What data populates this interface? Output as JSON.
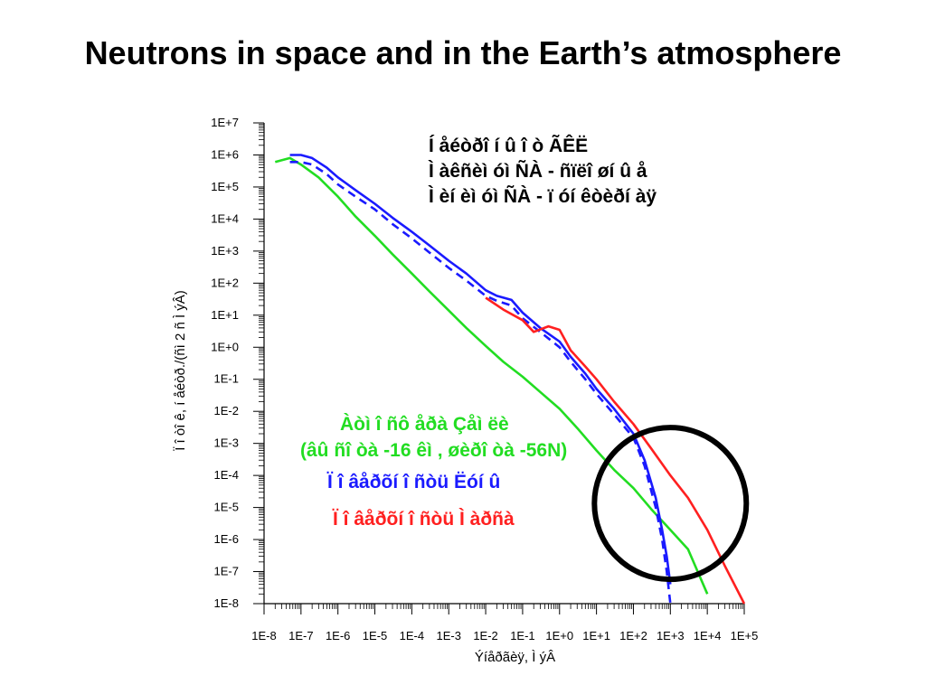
{
  "slide": {
    "title": "Neutrons in space and in the Earth’s atmosphere"
  },
  "chart_data": {
    "type": "line",
    "xlabel": "Ýíåðãèÿ, Ì ýÂ",
    "ylabel": "Ï î òî ê, í åéòð./(ñì 2 ñ Ì ýÂ)",
    "x_scale": "log",
    "y_scale": "log",
    "xlim": [
      1e-08,
      100000.0
    ],
    "ylim": [
      1e-08,
      10000000.0
    ],
    "x_ticks": [
      "1E-8",
      "1E-7",
      "1E-6",
      "1E-5",
      "1E-4",
      "1E-3",
      "1E-2",
      "1E-1",
      "1E+0",
      "1E+1",
      "1E+2",
      "1E+3",
      "1E+4",
      "1E+5"
    ],
    "y_ticks": [
      "1E-8",
      "1E-7",
      "1E-6",
      "1E-5",
      "1E-4",
      "1E-3",
      "1E-2",
      "1E-1",
      "1E+0",
      "1E+1",
      "1E+2",
      "1E+3",
      "1E+4",
      "1E+5",
      "1E+6",
      "1E+7"
    ],
    "grid": false,
    "annotations_top": [
      "Í åéòðî í û  î ò ÃÊË",
      "Ì àêñèì óì  ÑÀ - ñïëî øí û å",
      "Ì èí èì óì ÑÀ - ï óí êòèðí àÿ"
    ],
    "annotations_middle": [
      {
        "text": "Àòì î ñô åðà Çåì ëè",
        "color": "#22dd22"
      },
      {
        "text": "(âû ñî òà -16 êì , øèðî òà -56N)",
        "color": "#22dd22"
      },
      {
        "text": "Ï î âåðõí î ñòü Ëóí û",
        "color": "#1a1aff"
      },
      {
        "text": "Ï î âåðõí î ñòü Ì àðñà",
        "color": "#ff2020"
      }
    ],
    "highlight": {
      "shape": "circle",
      "x_center": 1000,
      "y_center": 0.0001
    },
    "series": [
      {
        "color": "#22dd22",
        "style": "solid",
        "x": [
          2e-08,
          5e-08,
          1e-07,
          3e-07,
          1e-06,
          3e-06,
          1e-05,
          3e-05,
          0.0001,
          0.0003,
          0.001,
          0.003,
          0.01,
          0.03,
          0.1,
          0.3,
          1,
          3,
          10,
          30,
          100,
          300,
          1000,
          3000,
          10000
        ],
        "y": [
          600000.0,
          800000.0,
          500000.0,
          200000.0,
          50000.0,
          12000.0,
          3000,
          800,
          200,
          55,
          14,
          4,
          1.1,
          0.35,
          0.12,
          0.04,
          0.012,
          0.003,
          0.0006,
          0.00015,
          4e-05,
          9e-06,
          2e-06,
          5e-07,
          2e-08
        ]
      },
      {
        "color": "#1a1aff",
        "style": "solid",
        "x": [
          5e-08,
          1e-07,
          2e-07,
          5e-07,
          1e-06,
          3e-06,
          1e-05,
          3e-05,
          0.0001,
          0.0003,
          0.001,
          0.003,
          0.01,
          0.02,
          0.05,
          0.1,
          0.3,
          1,
          2,
          5,
          10,
          30,
          100,
          200,
          400,
          600,
          800,
          1000
        ],
        "y": [
          1000000.0,
          1000000.0,
          800000.0,
          400000.0,
          200000.0,
          80000.0,
          30000.0,
          11000.0,
          4000,
          1500,
          500,
          200,
          60,
          40,
          30,
          12,
          4,
          1.5,
          0.5,
          0.15,
          0.05,
          0.012,
          0.002,
          0.0003,
          2e-05,
          2e-06,
          3e-07,
          4e-08
        ]
      },
      {
        "color": "#1a1aff",
        "style": "dashed",
        "x": [
          5e-08,
          1e-07,
          2e-07,
          5e-07,
          1e-06,
          3e-06,
          1e-05,
          3e-05,
          0.0001,
          0.0003,
          0.001,
          0.003,
          0.01,
          0.02,
          0.05,
          0.1,
          0.3,
          1,
          2,
          5,
          10,
          30,
          100,
          200,
          400,
          600,
          800,
          1000
        ],
        "y": [
          600000.0,
          600000.0,
          500000.0,
          250000.0,
          120000.0,
          50000.0,
          20000.0,
          7000,
          2500,
          900,
          300,
          120,
          40,
          28,
          20,
          8,
          3,
          1,
          0.35,
          0.1,
          0.035,
          0.008,
          0.0015,
          0.0002,
          1e-05,
          1e-06,
          1e-07,
          1e-08
        ]
      },
      {
        "color": "#ff2020",
        "style": "solid",
        "x": [
          0.01,
          0.03,
          0.1,
          0.2,
          0.5,
          1,
          2,
          5,
          10,
          30,
          100,
          300,
          1000,
          3000,
          10000,
          30000,
          100000
        ],
        "y": [
          35,
          15,
          7,
          3,
          4.5,
          3.5,
          0.8,
          0.25,
          0.1,
          0.02,
          0.004,
          0.0007,
          0.0001,
          2e-05,
          2e-06,
          1.5e-07,
          1e-08
        ]
      }
    ]
  }
}
